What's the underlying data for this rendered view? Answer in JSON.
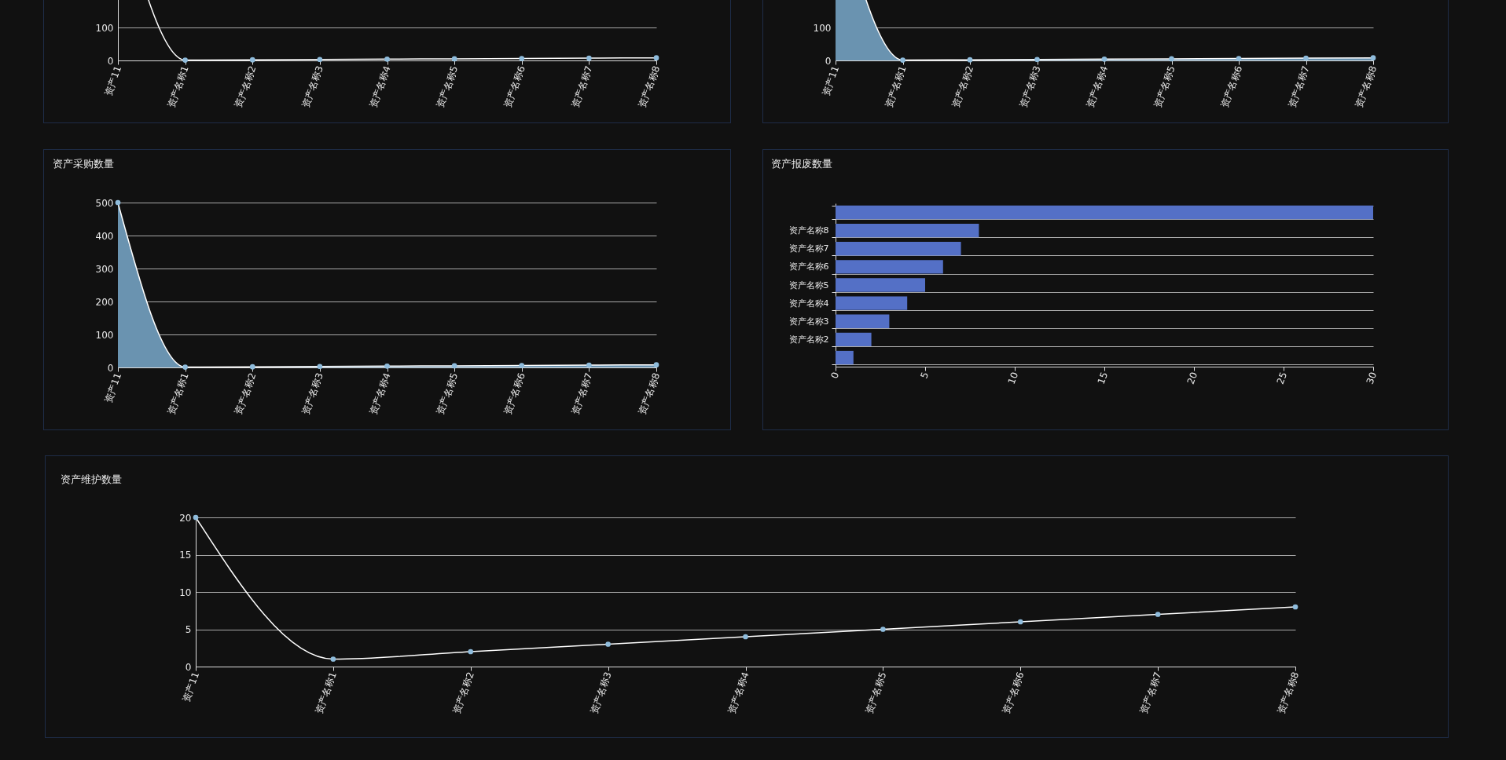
{
  "chart_data": [
    {
      "type": "line",
      "categories": [
        "资产11",
        "资产名称1",
        "资产名称2",
        "资产名称3",
        "资产名称4",
        "资产名称5",
        "资产名称6",
        "资产名称7",
        "资产名称8"
      ],
      "series": [
        {
          "color": "#ffffff",
          "values": [
            500,
            1,
            2,
            3,
            4,
            5,
            6,
            7,
            8
          ]
        }
      ],
      "ylim": [
        0,
        500
      ],
      "yticks": [
        0,
        100
      ],
      "grid": "y",
      "marker": "circle"
    },
    {
      "type": "area",
      "categories": [
        "资产11",
        "资产名称1",
        "资产名称2",
        "资产名称3",
        "资产名称4",
        "资产名称5",
        "资产名称6",
        "资产名称7",
        "资产名称8"
      ],
      "series": [
        {
          "color": "#6a93b0",
          "values": [
            500,
            1,
            2,
            3,
            4,
            5,
            6,
            7,
            8
          ]
        }
      ],
      "ylim": [
        0,
        500
      ],
      "yticks": [
        0,
        100
      ],
      "grid": "y",
      "marker": "circle"
    },
    {
      "type": "area",
      "title": "资产采购数量",
      "categories": [
        "资产11",
        "资产名称1",
        "资产名称2",
        "资产名称3",
        "资产名称4",
        "资产名称5",
        "资产名称6",
        "资产名称7",
        "资产名称8"
      ],
      "series": [
        {
          "color": "#6a93b0",
          "values": [
            500,
            1,
            2,
            3,
            4,
            5,
            6,
            7,
            8
          ]
        }
      ],
      "ylim": [
        0,
        500
      ],
      "yticks": [
        0,
        100,
        200,
        300,
        400,
        500
      ],
      "grid": "y",
      "marker": "circle"
    },
    {
      "type": "bar",
      "title": "资产报废数量",
      "orientation": "horizontal",
      "categories": [
        null,
        "资产名称8",
        "资产名称7",
        "资产名称6",
        "资产名称5",
        "资产名称4",
        "资产名称3",
        "资产名称2",
        null
      ],
      "series": [
        {
          "color": "#5470c6",
          "values": [
            30,
            8,
            7,
            6,
            5,
            4,
            3,
            2,
            1
          ]
        }
      ],
      "xlim": [
        0,
        30
      ],
      "xticks": [
        0,
        5,
        10,
        15,
        20,
        25,
        30
      ],
      "grid": "y"
    },
    {
      "type": "line",
      "title": "资产维护数量",
      "categories": [
        "资产11",
        "资产名称1",
        "资产名称2",
        "资产名称3",
        "资产名称4",
        "资产名称5",
        "资产名称6",
        "资产名称7",
        "资产名称8"
      ],
      "series": [
        {
          "color": "#ffffff",
          "values": [
            20,
            1,
            2,
            3,
            4,
            5,
            6,
            7,
            8
          ]
        }
      ],
      "ylim": [
        0,
        20
      ],
      "yticks": [
        0,
        5,
        10,
        15,
        20
      ],
      "grid": "y",
      "marker": "circle"
    }
  ]
}
